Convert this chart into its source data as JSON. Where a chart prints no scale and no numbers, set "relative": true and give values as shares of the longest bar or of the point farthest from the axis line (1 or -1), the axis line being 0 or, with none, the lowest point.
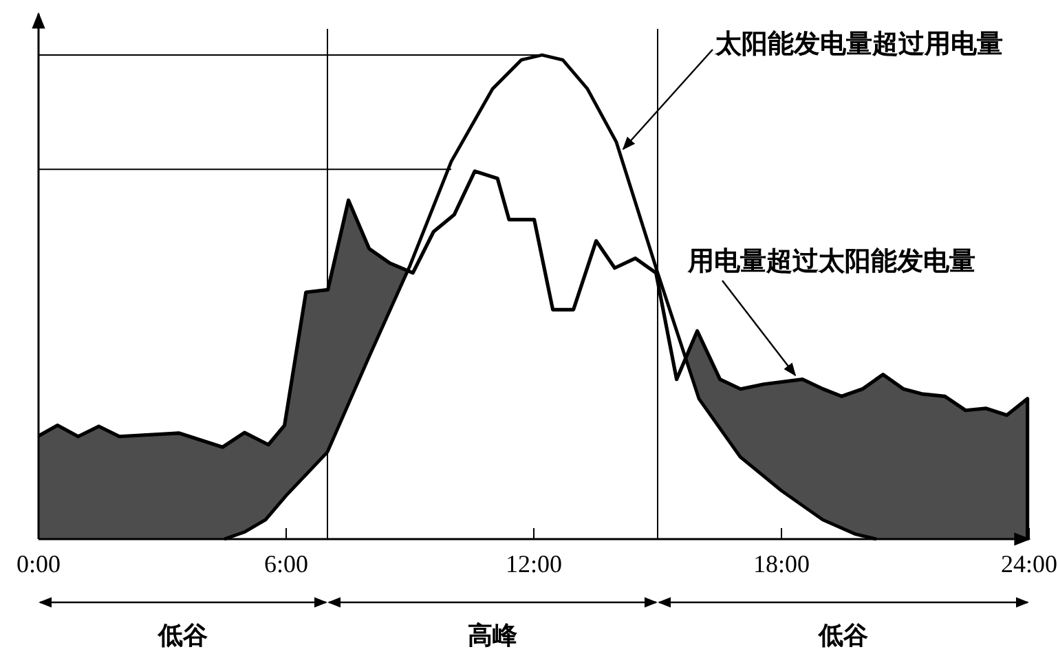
{
  "chart_data": {
    "type": "line",
    "relative": true,
    "xlim": [
      0,
      24
    ],
    "xticks": [
      {
        "value": 0,
        "label": "0:00"
      },
      {
        "value": 6,
        "label": "6:00"
      },
      {
        "value": 12,
        "label": "12:00"
      },
      {
        "value": 18,
        "label": "18:00"
      },
      {
        "value": 24,
        "label": "24:00"
      }
    ],
    "series": [
      {
        "type": "area",
        "color": "#4d4d4d",
        "x": [
          0,
          0.46,
          0.96,
          1.46,
          1.96,
          3.4,
          4.46,
          4.99,
          5.57,
          5.96,
          6.48,
          7.01,
          7.51,
          8.01,
          8.51,
          9.07,
          9.57,
          10.07,
          10.57,
          11.12,
          11.4,
          12.01,
          12.46,
          12.96,
          13.51,
          13.96,
          14.46,
          14.96,
          15.46,
          15.96,
          16.51,
          17.01,
          17.57,
          18.51,
          19.01,
          19.46,
          19.96,
          20.46,
          20.96,
          21.4,
          21.96,
          22.46,
          22.96,
          23.46,
          23.96
        ],
        "values": [
          0.213,
          0.235,
          0.212,
          0.233,
          0.212,
          0.219,
          0.19,
          0.22,
          0.195,
          0.235,
          0.51,
          0.515,
          0.7,
          0.6,
          0.57,
          0.55,
          0.635,
          0.67,
          0.76,
          0.745,
          0.66,
          0.66,
          0.474,
          0.474,
          0.616,
          0.56,
          0.58,
          0.55,
          0.33,
          0.43,
          0.33,
          0.31,
          0.32,
          0.33,
          0.31,
          0.295,
          0.31,
          0.34,
          0.31,
          0.3,
          0.295,
          0.266,
          0.27,
          0.256,
          0.29
        ]
      },
      {
        "color": "#000000",
        "x": [
          4.5,
          5,
          5.5,
          6,
          7,
          8,
          9,
          10,
          11,
          11.7,
          12.2,
          12.7,
          13.3,
          14,
          15,
          16,
          17,
          18,
          19,
          19.8,
          20.3
        ],
        "values": [
          0,
          0.015,
          0.04,
          0.09,
          0.18,
          0.375,
          0.565,
          0.78,
          0.93,
          0.99,
          1,
          0.99,
          0.93,
          0.82,
          0.55,
          0.29,
          0.17,
          0.1,
          0.04,
          0.01,
          0
        ]
      }
    ],
    "ref_lines": [
      {
        "axis": "x",
        "value": 7
      },
      {
        "axis": "x",
        "value": 15
      },
      {
        "axis": "y",
        "value": 1
      },
      {
        "axis": "y",
        "value": 0.764
      }
    ],
    "annotations": [
      {
        "text": "太阳能发电量超过用电量",
        "x": 14.1,
        "y": 0.8
      },
      {
        "text": "用电量超过太阳能发电量",
        "x": 18.4,
        "y": 0.33
      },
      "低谷",
      "高峰",
      "低谷"
    ]
  }
}
